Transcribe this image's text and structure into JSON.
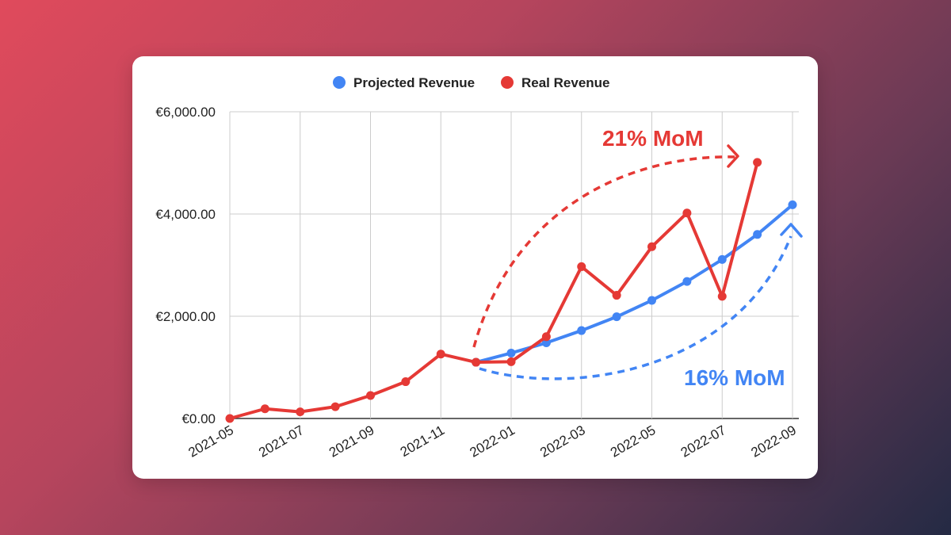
{
  "chart_data": {
    "type": "line",
    "categories": [
      "2021-05",
      "2021-06",
      "2021-07",
      "2021-08",
      "2021-09",
      "2021-10",
      "2021-11",
      "2021-12",
      "2022-01",
      "2022-02",
      "2022-03",
      "2022-04",
      "2022-05",
      "2022-06",
      "2022-07",
      "2022-08",
      "2022-09"
    ],
    "x_tick_labels": [
      "2021-05",
      "2021-07",
      "2021-09",
      "2021-11",
      "2022-01",
      "2022-03",
      "2022-05",
      "2022-07",
      "2022-09"
    ],
    "y_tick_labels": [
      "€0.00",
      "€2,000.00",
      "€4,000.00",
      "€6,000.00"
    ],
    "y_ticks": [
      0,
      2000,
      4000,
      6000
    ],
    "ylim": [
      0,
      6000
    ],
    "gridlines": true,
    "legend_position": "top-center",
    "series": [
      {
        "name": "Projected Revenue",
        "color": "#4285f4",
        "values": [
          null,
          null,
          null,
          null,
          null,
          null,
          null,
          1100,
          1280,
          1480,
          1720,
          1990,
          2310,
          2680,
          3110,
          3600,
          4180
        ]
      },
      {
        "name": "Real Revenue",
        "color": "#e53935",
        "values": [
          0,
          190,
          130,
          230,
          450,
          720,
          1260,
          1100,
          1110,
          1600,
          2970,
          2410,
          3360,
          4020,
          2390,
          5010,
          null
        ]
      }
    ],
    "annotations": [
      {
        "text": "21% MoM",
        "color": "#e53935",
        "series": "Real Revenue"
      },
      {
        "text": "16% MoM",
        "color": "#4285f4",
        "series": "Projected Revenue"
      }
    ]
  }
}
